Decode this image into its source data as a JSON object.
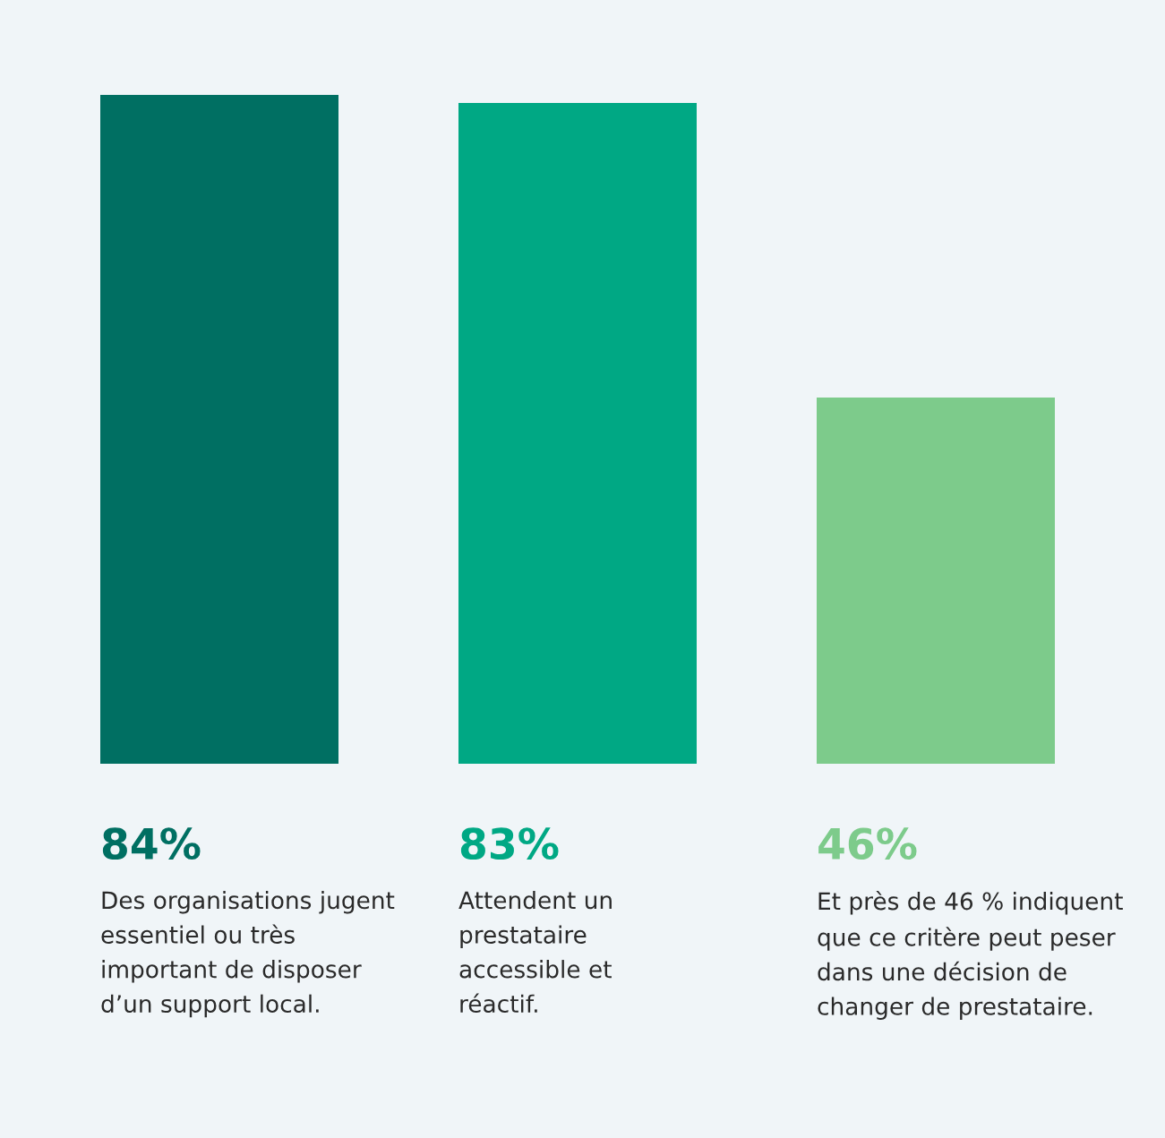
{
  "chart_data": {
    "type": "bar",
    "categories": [
      "Des organisations jugent\nessentiel ou très\nimportant de disposer\nd’un support local.",
      "Attendent un\nprestataire\naccessible et\nréactif.",
      "Et près de 46 % indiquent\nque ce critère peut peser\ndans une décision de\nchanger de prestataire."
    ],
    "values": [
      84,
      83,
      46
    ],
    "value_labels": [
      "84%",
      "83%",
      "46%"
    ],
    "colors": [
      "#006f62",
      "#00a884",
      "#7dcb8b"
    ]
  }
}
